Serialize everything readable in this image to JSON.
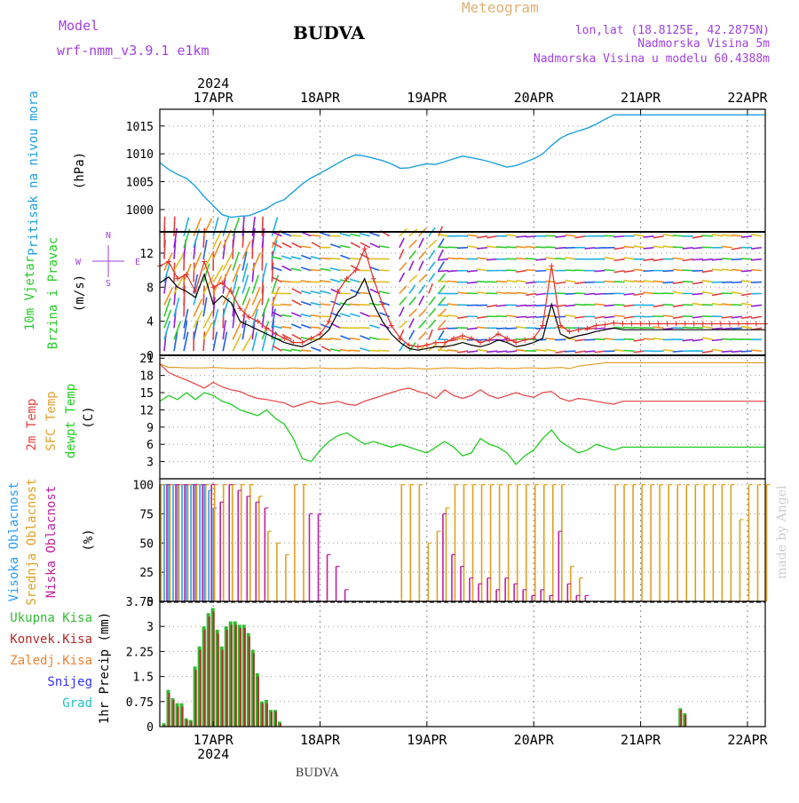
{
  "header": {
    "model_label": "Model",
    "model_name": "wrf-nmm_v3.9.1 e1km",
    "station": "BUDVA",
    "product": "Meteogram",
    "lonlat": "lon,lat (18.8125E, 42.2875N)",
    "elevation": "Nadmorska Visina 5m",
    "model_elevation": "Nadmorska Visina u modelu 60.4388m",
    "footer_station": "BUDVA",
    "credit": "made by Angel"
  },
  "time_axis": {
    "year": "2024",
    "days": [
      "17APR",
      "18APR",
      "19APR",
      "20APR",
      "21APR",
      "22APR"
    ],
    "range_hours": [
      -12,
      124
    ],
    "note": "hours since 17APR 00 UTC"
  },
  "colors": {
    "pressure": "#1ca0e0",
    "wind_speed": "#000000",
    "wind_gust": "#e0302a",
    "temp2m": "#e84040",
    "sfc_temp": "#e0a030",
    "dewpt": "#22cc22",
    "high_cloud": "#2a9df4",
    "mid_cloud": "#e0a020",
    "low_cloud": "#c020a0",
    "total_precip": "#33bb33",
    "conv_precip": "#b02a2a",
    "frozen_precip": "#f08030",
    "snow": "#3030ff",
    "hail": "#20c0c0",
    "purple_text": "#a040e0",
    "orange_text": "#e0b070"
  },
  "chart_data": [
    {
      "type": "line",
      "panel": "pressure",
      "ylabel_1": "Pritisak na nivou mora",
      "ylabel_2": "(hPa)",
      "ylim": [
        996,
        1018
      ],
      "yticks": [
        "1015",
        "1010",
        "1005",
        "1000"
      ],
      "x": [
        -12,
        -10,
        -8,
        -6,
        -4,
        -2,
        0,
        2,
        4,
        6,
        8,
        10,
        12,
        14,
        16,
        18,
        20,
        22,
        24,
        26,
        28,
        30,
        32,
        34,
        36,
        38,
        40,
        42,
        44,
        46,
        48,
        50,
        52,
        54,
        56,
        58,
        60,
        62,
        64,
        66,
        68,
        70,
        72,
        74,
        76,
        78,
        80,
        82,
        84,
        86,
        88,
        90,
        92,
        94,
        96,
        98,
        100,
        102,
        104,
        106,
        108,
        110,
        112,
        114,
        116,
        118,
        120,
        122,
        124
      ],
      "values": [
        1008.4,
        1007.2,
        1006.3,
        1005.6,
        1004.2,
        1002.3,
        1000.7,
        999.1,
        998.6,
        998.8,
        998.9,
        999.5,
        1000.2,
        1001.2,
        1001.8,
        1003.2,
        1004.6,
        1005.7,
        1006.5,
        1007.4,
        1008.3,
        1009.2,
        1009.8,
        1009.6,
        1009.2,
        1008.8,
        1008.2,
        1007.4,
        1007.5,
        1007.9,
        1008.2,
        1008.1,
        1008.6,
        1009.1,
        1009.6,
        1009.3,
        1009.0,
        1008.6,
        1008.1,
        1007.6,
        1007.9,
        1008.5,
        1009.1,
        1010.0,
        1011.5,
        1012.8,
        1013.6,
        1014.1,
        1014.6,
        1015.3,
        1016.2,
        1017.0,
        1017.0,
        1017.0,
        1017.0,
        1017.0,
        1017.0,
        1017.0,
        1017.0,
        1017.0,
        1017.0,
        1017.0,
        1017.0,
        1017.0,
        1017.0,
        1017.0,
        1017.0,
        1017.0,
        1017.0
      ]
    },
    {
      "type": "line",
      "panel": "wind",
      "ylabel_1": "10m Vjetar",
      "ylabel_2": "Brzina i Pravac",
      "ylabel_3": "(m/s)",
      "compass": [
        "S",
        "W",
        "E",
        "N"
      ],
      "ylim": [
        0,
        14.5
      ],
      "yticks": [
        "12",
        "8",
        "4",
        "0"
      ],
      "x": [
        -12,
        -10,
        -8,
        -6,
        -4,
        -2,
        0,
        2,
        4,
        6,
        8,
        10,
        12,
        14,
        16,
        18,
        20,
        22,
        24,
        26,
        28,
        30,
        32,
        34,
        36,
        38,
        40,
        42,
        44,
        46,
        48,
        50,
        52,
        54,
        56,
        58,
        60,
        62,
        64,
        66,
        68,
        70,
        72,
        74,
        76,
        78,
        80,
        82,
        84,
        86,
        88,
        90,
        92,
        94,
        96,
        98,
        100,
        102,
        104,
        106,
        108,
        110,
        112,
        114,
        116,
        118,
        120,
        122,
        124
      ],
      "series": [
        {
          "values": [
            8.5,
            9.2,
            8.0,
            7.5,
            6.8,
            9.5,
            6.0,
            7.0,
            6.2,
            4.0,
            3.5,
            3.0,
            2.5,
            2.0,
            1.5,
            1.2,
            1.0,
            1.5,
            2.0,
            3.0,
            5.0,
            6.5,
            7.0,
            9.0,
            6.0,
            4.0,
            2.5,
            1.5,
            0.8,
            0.6,
            0.8,
            1.0,
            1.0,
            1.2,
            1.5,
            1.2,
            1.0,
            1.3,
            1.8,
            1.5,
            1.0,
            1.2,
            1.5,
            2.0,
            6.0,
            2.5,
            2.0,
            2.3,
            2.5,
            2.8,
            3.0,
            3.2,
            3.0,
            3.0,
            3.0,
            3.0,
            3.0,
            3.0,
            3.0,
            3.0,
            3.0,
            3.0,
            3.0,
            3.0,
            3.0,
            3.0,
            3.0,
            3.0,
            3.0
          ]
        },
        {
          "values": [
            10.5,
            11.0,
            9.0,
            9.5,
            7.5,
            11.0,
            8.0,
            8.5,
            7.5,
            5.5,
            4.5,
            4.0,
            3.2,
            2.5,
            2.0,
            1.5,
            1.5,
            2.0,
            2.5,
            4.0,
            7.5,
            9.0,
            10.0,
            12.5,
            9.0,
            6.0,
            3.5,
            2.0,
            1.2,
            1.0,
            1.2,
            1.5,
            1.5,
            2.0,
            2.3,
            2.0,
            1.5,
            1.8,
            2.5,
            2.0,
            1.5,
            1.8,
            2.0,
            3.5,
            10.5,
            3.5,
            2.8,
            3.0,
            3.2,
            3.5,
            3.6,
            3.8,
            3.7,
            3.7,
            3.7,
            3.7,
            3.7,
            3.7,
            3.7,
            3.7,
            3.7,
            3.7,
            3.7,
            3.7,
            3.7,
            3.7,
            3.7,
            3.7,
            3.7
          ]
        }
      ]
    },
    {
      "type": "line",
      "panel": "temperature",
      "ylabel_1": "2m Temp",
      "ylabel_2": "SFC Temp",
      "ylabel_3": "dewpt Temp",
      "ylabel_4": "(C)",
      "ylim": [
        0,
        21.5
      ],
      "yticks": [
        "21",
        "18",
        "15",
        "12",
        "9",
        "6",
        "3"
      ],
      "x": [
        -12,
        -10,
        -8,
        -6,
        -4,
        -2,
        0,
        2,
        4,
        6,
        8,
        10,
        12,
        14,
        16,
        18,
        20,
        22,
        24,
        26,
        28,
        30,
        32,
        34,
        36,
        38,
        40,
        42,
        44,
        46,
        48,
        50,
        52,
        54,
        56,
        58,
        60,
        62,
        64,
        66,
        68,
        70,
        72,
        74,
        76,
        78,
        80,
        82,
        84,
        86,
        88,
        90,
        92,
        94,
        96,
        98,
        100,
        102,
        104,
        106,
        108,
        110,
        112,
        114,
        116,
        118,
        120,
        122,
        124
      ],
      "series": [
        {
          "values": [
            20.0,
            18.5,
            17.8,
            17.2,
            16.5,
            15.8,
            16.8,
            16.0,
            15.5,
            15.2,
            14.5,
            14.0,
            13.8,
            13.5,
            13.2,
            12.5,
            13.0,
            13.5,
            13.0,
            13.2,
            13.5,
            13.0,
            12.8,
            13.5,
            14.0,
            14.5,
            15.0,
            15.5,
            15.8,
            15.2,
            14.8,
            14.0,
            15.5,
            14.5,
            14.0,
            14.5,
            15.5,
            14.5,
            14.0,
            14.5,
            15.0,
            14.5,
            14.2,
            15.0,
            15.2,
            14.0,
            13.5,
            14.0,
            13.8,
            13.5,
            13.2,
            13.0,
            13.5,
            13.5,
            13.5,
            13.5,
            13.5,
            13.5,
            13.5,
            13.5,
            13.5,
            13.5,
            13.5,
            13.5,
            13.5,
            13.5,
            13.5,
            13.5,
            13.5
          ]
        },
        {
          "values": [
            20.0,
            19.4,
            19.4,
            19.3,
            19.3,
            19.3,
            19.4,
            19.3,
            19.2,
            19.2,
            19.2,
            19.3,
            19.2,
            19.2,
            19.2,
            19.3,
            19.2,
            19.3,
            19.3,
            19.2,
            19.2,
            19.2,
            19.3,
            19.3,
            19.2,
            19.3,
            19.2,
            19.2,
            19.3,
            19.2,
            19.1,
            19.2,
            19.3,
            19.3,
            19.2,
            19.2,
            19.3,
            19.2,
            19.3,
            19.2,
            19.2,
            19.3,
            19.3,
            19.2,
            19.3,
            19.4,
            19.2,
            19.6,
            19.8,
            20.0,
            20.2,
            20.2,
            20.2,
            20.2,
            20.2,
            20.2,
            20.2,
            20.2,
            20.2,
            20.2,
            20.2,
            20.2,
            20.2,
            20.2,
            20.2,
            20.2,
            20.2,
            20.2,
            20.2
          ]
        },
        {
          "values": [
            13.5,
            14.5,
            13.8,
            15.0,
            13.8,
            15.0,
            14.5,
            13.5,
            13.0,
            12.0,
            11.5,
            11.0,
            12.0,
            10.5,
            9.5,
            7.0,
            3.5,
            3.0,
            5.0,
            6.5,
            7.5,
            8.0,
            7.0,
            6.0,
            6.5,
            6.0,
            5.5,
            6.0,
            5.5,
            5.0,
            4.5,
            5.5,
            6.5,
            5.5,
            4.0,
            4.5,
            7.0,
            6.0,
            5.5,
            4.5,
            2.5,
            4.0,
            5.0,
            7.0,
            8.5,
            6.5,
            5.5,
            4.5,
            5.0,
            6.0,
            5.5,
            5.0,
            5.5,
            5.5,
            5.5,
            5.5,
            5.5,
            5.5,
            5.5,
            5.5,
            5.5,
            5.5,
            5.5,
            5.5,
            5.5,
            5.5,
            5.5,
            5.5,
            5.5
          ]
        }
      ]
    },
    {
      "type": "bar",
      "panel": "cloud",
      "ylabel_1": "Visoka Oblacnost",
      "ylabel_2": "Srednja Oblacnost",
      "ylabel_3": "Niska Oblacnost",
      "ylabel_4": "(%)",
      "ylim": [
        0,
        105
      ],
      "yticks": [
        "100",
        "75",
        "50",
        "25",
        "0"
      ],
      "series": [
        {
          "x": [
            -12,
            -11,
            -10,
            -9,
            -8,
            -7,
            -6,
            -5,
            -4,
            -3,
            -2,
            -1,
            0,
            1
          ],
          "values": [
            100,
            100,
            100,
            100,
            100,
            100,
            100,
            100,
            100,
            100,
            100,
            95,
            80,
            0
          ]
        },
        {
          "x": [
            -12,
            -10,
            -8,
            -6,
            -4,
            -2,
            0,
            2,
            4,
            6,
            8,
            10,
            12,
            14,
            16,
            18,
            20,
            42,
            44,
            46,
            48,
            50,
            52,
            54,
            56,
            58,
            60,
            62,
            64,
            66,
            68,
            70,
            72,
            74,
            76,
            78,
            80,
            82,
            90,
            92,
            94,
            96,
            98,
            100,
            102,
            104,
            106,
            108,
            110,
            112,
            114,
            116,
            118,
            120,
            122,
            124
          ],
          "values": [
            100,
            100,
            100,
            100,
            100,
            100,
            100,
            100,
            100,
            100,
            100,
            90,
            60,
            50,
            40,
            100,
            100,
            100,
            100,
            100,
            50,
            60,
            80,
            100,
            100,
            100,
            100,
            100,
            100,
            100,
            100,
            100,
            100,
            100,
            100,
            100,
            30,
            20,
            100,
            100,
            100,
            100,
            100,
            100,
            100,
            100,
            100,
            100,
            100,
            100,
            100,
            100,
            70,
            100,
            100,
            100
          ]
        },
        {
          "x": [
            -11,
            -9,
            -7,
            -5,
            -3,
            -1,
            1,
            3,
            5,
            7,
            9,
            11,
            21,
            23,
            25,
            27,
            29,
            51,
            53,
            55,
            57,
            59,
            61,
            63,
            65,
            67,
            69,
            71,
            73,
            75,
            77,
            79,
            81,
            83
          ],
          "values": [
            100,
            100,
            100,
            100,
            100,
            100,
            85,
            100,
            95,
            90,
            85,
            80,
            75,
            75,
            40,
            30,
            10,
            75,
            40,
            30,
            20,
            15,
            20,
            10,
            20,
            15,
            10,
            5,
            10,
            5,
            60,
            15,
            5,
            5
          ]
        }
      ]
    },
    {
      "type": "bar",
      "panel": "precip",
      "legend": [
        "Ukupna Kisa",
        "Konvek.Kisa",
        "Zaledj.Kisa",
        "Snijeg",
        "Grad"
      ],
      "ylabel": "1hr Precip (mm)",
      "ylim": [
        0,
        3.75
      ],
      "yticks": [
        "3.75",
        "3",
        "2.25",
        "1.5",
        "0.75",
        "0"
      ],
      "x": [
        -11,
        -10,
        -9,
        -8,
        -7,
        -6,
        -5,
        -4,
        -3,
        -2,
        -1,
        0,
        1,
        2,
        3,
        4,
        5,
        6,
        7,
        8,
        9,
        10,
        11,
        12,
        13,
        14,
        15,
        16,
        17,
        18,
        19,
        20,
        21,
        22,
        23,
        24,
        25,
        26,
        27,
        28,
        105,
        106
      ],
      "series": [
        {
          "name": "Ukupna Kisa",
          "values": [
            0.1,
            1.1,
            0.85,
            0.7,
            0.7,
            0.25,
            0.2,
            1.8,
            2.4,
            3.0,
            3.4,
            3.55,
            2.9,
            2.4,
            3.0,
            3.15,
            3.15,
            3.05,
            3.05,
            2.8,
            2.3,
            1.6,
            0.75,
            0.8,
            0.5,
            0.5,
            0.15,
            0.0,
            0.0,
            0.0,
            0.0,
            0.0,
            0.0,
            0.0,
            0.0,
            0.0,
            0.0,
            0.0,
            0.0,
            0.0,
            0.55,
            0.4
          ]
        },
        {
          "name": "Konvek.Kisa",
          "values": [
            0.05,
            1.0,
            0.8,
            0.6,
            0.6,
            0.2,
            0.15,
            1.7,
            2.3,
            2.9,
            3.3,
            3.45,
            2.8,
            2.3,
            2.9,
            3.05,
            3.05,
            2.95,
            2.95,
            2.7,
            2.2,
            1.5,
            0.7,
            0.7,
            0.45,
            0.45,
            0.1,
            0.0,
            0.0,
            0.0,
            0.0,
            0.0,
            0.0,
            0.0,
            0.0,
            0.0,
            0.0,
            0.0,
            0.0,
            0.0,
            0.5,
            0.35
          ]
        }
      ]
    }
  ]
}
